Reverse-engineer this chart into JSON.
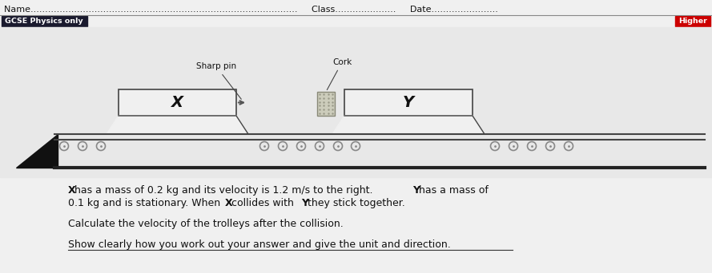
{
  "bg_color": "#f0f0f0",
  "header_text": "Name............................................................................................     Class.....................     Date.......................",
  "gcse_label": "GCSE Physics only",
  "higher_label": "Higher",
  "gcse_bg": "#1a1a2e",
  "higher_bg": "#cc0000",
  "diagram_bg": "#e8e8e8",
  "trolley_fill": "#f0f0f0",
  "trolley_stroke": "#444444",
  "pin_label": "Sharp pin",
  "cork_label": "Cork",
  "label_X": "X",
  "label_Y": "Y",
  "p1_line1": " has a mass of 0.2 kg and its velocity is 1.2 m/s to the right. ",
  "p1_bold_Y": "Y",
  "p1_line1_end": " has a mass of",
  "p1_line2_start": "0.1 kg and is stationary. When ",
  "p1_bold_X2": "X",
  "p1_line2_mid": " collides with ",
  "p1_bold_Y2": "Y",
  "p1_line2_end": " they stick together.",
  "paragraph2": "Calculate the velocity of the trolleys after the collision.",
  "paragraph3": "Show clearly how you work out your answer and give the unit and direction."
}
